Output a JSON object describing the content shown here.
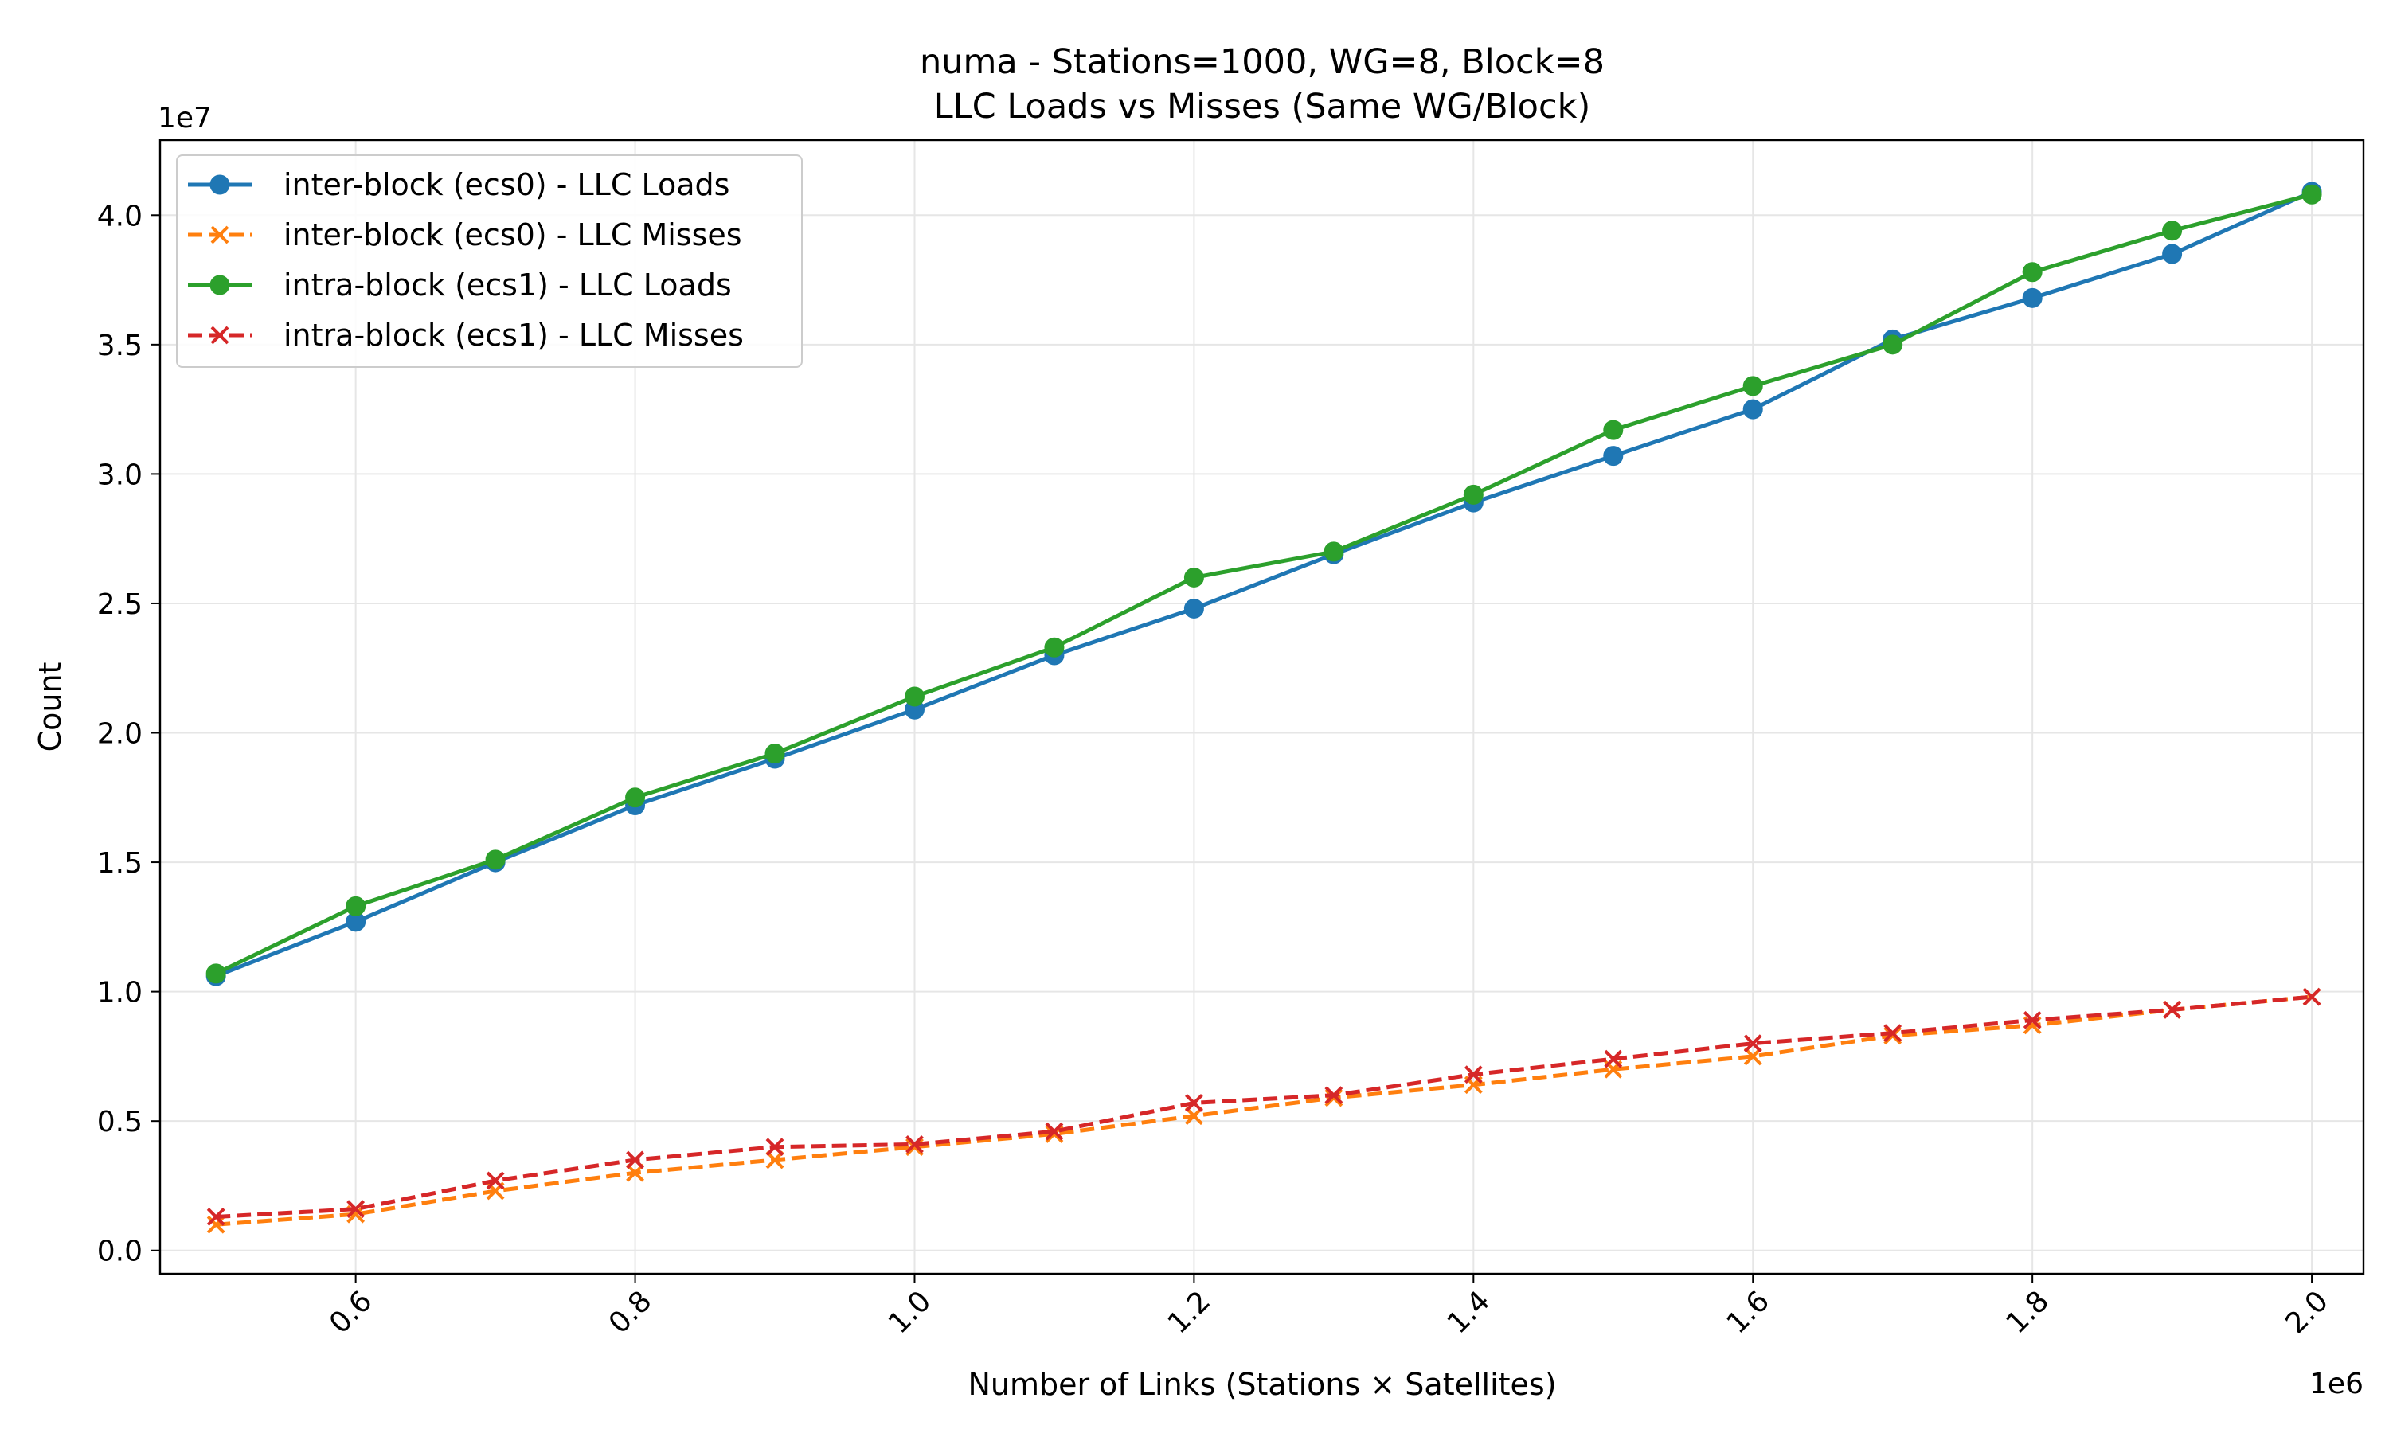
{
  "chart_data": {
    "type": "line",
    "title": "numa - Stations=1000, WG=8, Block=8",
    "subtitle": "LLC Loads vs Misses (Same WG/Block)",
    "xlabel": "Number of Links (Stations × Satellites)",
    "ylabel": "Count",
    "x_offset_label": "1e6",
    "y_offset_label": "1e7",
    "x_scale": 1000000,
    "y_scale": 10000000,
    "xlim": [
      0.46,
      2.037
    ],
    "ylim": [
      -0.09,
      4.29
    ],
    "x_ticks": [
      0.6,
      0.8,
      1.0,
      1.2,
      1.4,
      1.6,
      1.8,
      2.0
    ],
    "x_tick_labels": [
      "0.6",
      "0.8",
      "1.0",
      "1.2",
      "1.4",
      "1.6",
      "1.8",
      "2.0"
    ],
    "y_ticks": [
      0.0,
      0.5,
      1.0,
      1.5,
      2.0,
      2.5,
      3.0,
      3.5,
      4.0
    ],
    "y_tick_labels": [
      "0.0",
      "0.5",
      "1.0",
      "1.5",
      "2.0",
      "2.5",
      "3.0",
      "3.5",
      "4.0"
    ],
    "grid": true,
    "legend_position": "top-left",
    "x": [
      0.5,
      0.6,
      0.7,
      0.8,
      0.9,
      1.0,
      1.1,
      1.2,
      1.3,
      1.4,
      1.5,
      1.6,
      1.7,
      1.8,
      1.9,
      2.0
    ],
    "series": [
      {
        "name": "inter-block (ecs0) - LLC Loads",
        "color": "#1f77b4",
        "marker": "circle",
        "line_style": "solid",
        "values": [
          1.06,
          1.27,
          1.5,
          1.72,
          1.9,
          2.09,
          2.3,
          2.48,
          2.69,
          2.89,
          3.07,
          3.25,
          3.52,
          3.68,
          3.85,
          4.09
        ]
      },
      {
        "name": "inter-block (ecs0) - LLC Misses",
        "color": "#ff7f0e",
        "marker": "x",
        "line_style": "dashed",
        "values": [
          0.1,
          0.14,
          0.23,
          0.3,
          0.35,
          0.4,
          0.45,
          0.52,
          0.59,
          0.64,
          0.7,
          0.75,
          0.83,
          0.87,
          0.93,
          0.98
        ]
      },
      {
        "name": "intra-block (ecs1) - LLC Loads",
        "color": "#2ca02c",
        "marker": "circle",
        "line_style": "solid",
        "values": [
          1.07,
          1.33,
          1.51,
          1.75,
          1.92,
          2.14,
          2.33,
          2.6,
          2.7,
          2.92,
          3.17,
          3.34,
          3.5,
          3.78,
          3.94,
          4.08
        ]
      },
      {
        "name": "intra-block (ecs1) - LLC Misses",
        "color": "#d62728",
        "marker": "x",
        "line_style": "dashed",
        "values": [
          0.13,
          0.16,
          0.27,
          0.35,
          0.4,
          0.41,
          0.46,
          0.57,
          0.6,
          0.68,
          0.74,
          0.8,
          0.84,
          0.89,
          0.93,
          0.98
        ]
      }
    ]
  }
}
